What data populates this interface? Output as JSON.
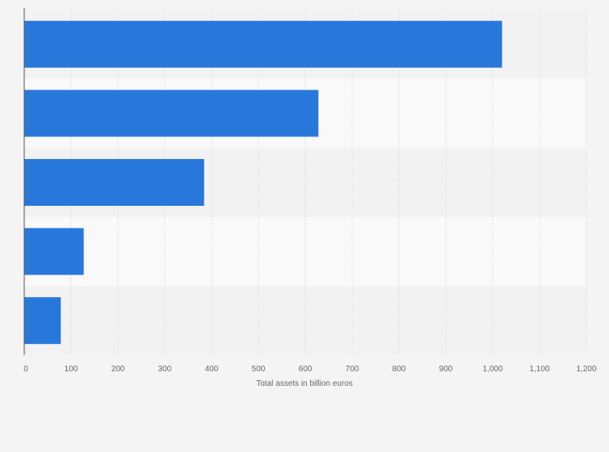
{
  "chart_data": {
    "type": "bar",
    "orientation": "horizontal",
    "categories": [
      "",
      "",
      "",
      "",
      ""
    ],
    "values": [
      1020,
      628,
      384,
      127,
      78
    ],
    "xlabel": "Total assets in billion euros",
    "ylabel": "",
    "xlim": [
      0,
      1200
    ],
    "ticks": [
      0,
      100,
      200,
      300,
      400,
      500,
      600,
      700,
      800,
      900,
      1000,
      1100,
      1200
    ],
    "tick_labels": [
      "0",
      "100",
      "200",
      "300",
      "400",
      "500",
      "600",
      "700",
      "800",
      "900",
      "1,000",
      "1,100",
      "1,200"
    ],
    "grid": true,
    "bar_color": "#2878dc",
    "band_colors": [
      "#f2f2f2",
      "#f9f9f9"
    ]
  }
}
